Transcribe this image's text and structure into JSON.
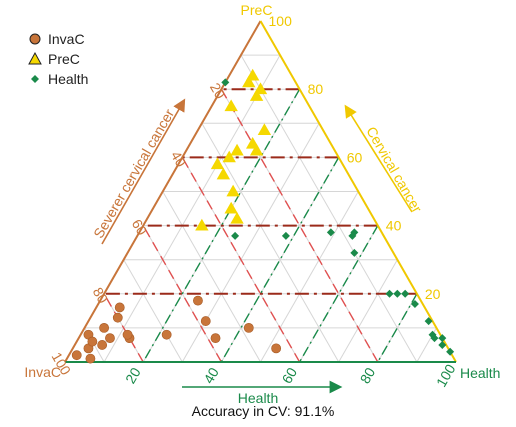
{
  "chart_data": {
    "type": "scatter",
    "subtype": "ternary",
    "axes": {
      "InvaC": {
        "label": "InvaC",
        "color": "#c8753a",
        "ticks": [
          20,
          40,
          60,
          80,
          100
        ],
        "arrow_label": "Severer cervical cancer"
      },
      "PreC": {
        "label": "PreC",
        "color": "#f0c800",
        "ticks": [
          20,
          40,
          60,
          80,
          100
        ],
        "arrow_label": "Cervical cancer"
      },
      "Health": {
        "label": "Health",
        "color": "#1a8a4a",
        "ticks": [
          20,
          40,
          60,
          80,
          100
        ],
        "arrow_label": "Health"
      }
    },
    "grid": true,
    "grid_step": 10,
    "dashed_lines": {
      "PreC": {
        "values": [
          20,
          40,
          60,
          80
        ],
        "color": "#9b2a1a"
      },
      "InvaC": {
        "values": [
          20,
          40,
          60,
          80
        ],
        "color": "#e05050"
      },
      "Health": {
        "values": [
          20,
          40,
          60,
          80
        ],
        "color": "#1a8a4a"
      }
    },
    "legend": {
      "position": "top-left",
      "items": [
        {
          "name": "InvaC",
          "marker": "circle",
          "color": "#c8753a"
        },
        {
          "name": "PreC",
          "marker": "triangle",
          "color": "#f5d800"
        },
        {
          "name": "Health",
          "marker": "diamond",
          "color": "#1a8a4a"
        }
      ]
    },
    "series": [
      {
        "name": "InvaC",
        "points": [
          [
            58,
            12,
            30
          ],
          [
            57,
            18,
            25
          ],
          [
            78,
            16,
            6
          ],
          [
            85,
            10,
            5
          ],
          [
            80,
            13,
            7
          ],
          [
            90,
            8,
            2
          ],
          [
            92,
            4,
            4
          ],
          [
            96,
            2,
            2
          ],
          [
            93,
            1,
            6
          ],
          [
            90,
            6,
            4
          ],
          [
            88,
            5,
            7
          ],
          [
            85,
            7,
            8
          ],
          [
            80,
            7,
            13
          ],
          [
            80,
            8,
            12
          ],
          [
            70,
            8,
            22
          ],
          [
            58,
            7,
            35
          ],
          [
            48,
            10,
            42
          ],
          [
            44,
            4,
            52
          ]
        ]
      },
      {
        "name": "PreC",
        "points": [
          [
            12,
            78,
            10
          ],
          [
            10,
            80,
            10
          ],
          [
            20,
            75,
            5
          ],
          [
            12,
            82,
            6
          ],
          [
            10,
            84,
            6
          ],
          [
            15,
            68,
            17
          ],
          [
            20,
            62,
            18
          ],
          [
            20,
            64,
            16
          ],
          [
            25,
            62,
            13
          ],
          [
            28,
            60,
            12
          ],
          [
            32,
            58,
            10
          ],
          [
            32,
            55,
            13
          ],
          [
            32,
            50,
            18
          ],
          [
            35,
            45,
            20
          ],
          [
            35,
            42,
            23
          ],
          [
            45,
            40,
            15
          ]
        ]
      },
      {
        "name": "Health",
        "points": [
          [
            18,
            82,
            0
          ],
          [
            38,
            37,
            25
          ],
          [
            25,
            37,
            38
          ],
          [
            13,
            38,
            49
          ],
          [
            8,
            37,
            55
          ],
          [
            7,
            38,
            55
          ],
          [
            10,
            32,
            58
          ],
          [
            5,
            20,
            75
          ],
          [
            3,
            20,
            77
          ],
          [
            2,
            17,
            81
          ],
          [
            7,
            20,
            73
          ],
          [
            1,
            12,
            87
          ],
          [
            2,
            8,
            90
          ],
          [
            2,
            7,
            91
          ],
          [
            0,
            7,
            93
          ],
          [
            1,
            5,
            94
          ],
          [
            0,
            3,
            97
          ]
        ]
      }
    ]
  },
  "footer": {
    "text": "Accuracy in CV: 91.1%"
  }
}
